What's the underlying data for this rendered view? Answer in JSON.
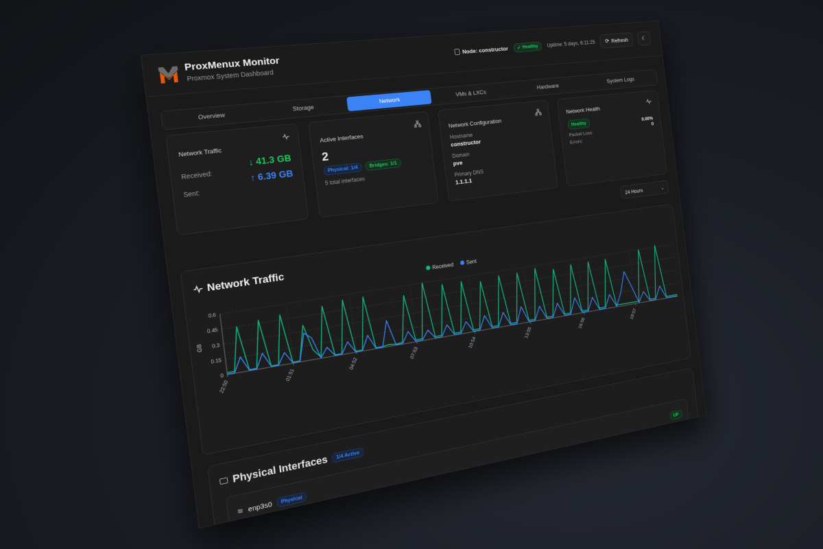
{
  "header": {
    "title": "ProxMenux Monitor",
    "subtitle": "Proxmox System Dashboard",
    "node": "Node: constructor",
    "status": "Healthy",
    "uptime": "Uptime: 5 days, 6:11:25",
    "refresh": "Refresh"
  },
  "tabs": [
    {
      "label": "Overview"
    },
    {
      "label": "Storage"
    },
    {
      "label": "Network",
      "active": true
    },
    {
      "label": "VMs & LXCs"
    },
    {
      "label": "Hardware"
    },
    {
      "label": "System Logs"
    }
  ],
  "traffic_card": {
    "title": "Network Traffic",
    "received_label": "Received:",
    "received": "↓ 41.3 GB",
    "sent_label": "Sent:",
    "sent": "↑ 6.39 GB"
  },
  "interfaces_card": {
    "title": "Active Interfaces",
    "count": "2",
    "physical": "Physical: 1/4",
    "bridges": "Bridges: 1/1",
    "total": "5 total interfaces"
  },
  "config_card": {
    "title": "Network Configuration",
    "hostname_label": "Hostname",
    "hostname": "constructor",
    "domain_label": "Domain",
    "domain": "pve",
    "dns_label": "Primary DNS",
    "dns": "1.1.1.1"
  },
  "health_card": {
    "title": "Network Health",
    "status": "Healthy",
    "packet_loss_value": "0.00%",
    "packet_loss_label": "Packet Loss:",
    "errors_value": "0",
    "errors_label": "Errors:"
  },
  "timerange": {
    "selected": "24 Hours"
  },
  "colors": {
    "accent": "#3b82f6",
    "received": "#10b981",
    "sent": "#3b82f6",
    "healthy": "#22c55e"
  },
  "chart_data": {
    "type": "line",
    "title": "Network Traffic",
    "ylabel": "GB",
    "ylim": [
      0,
      0.6
    ],
    "yticks": [
      "0",
      "0.15",
      "0.3",
      "0.45",
      "0.6"
    ],
    "xticks": [
      "22:50",
      "01:51",
      "04:52",
      "07:53",
      "10:54",
      "13:55",
      "16:56",
      "19:57"
    ],
    "legend": "top-center",
    "grid": true,
    "x": [
      "22:50",
      "23:10",
      "23:30",
      "23:50",
      "00:10",
      "00:30",
      "00:50",
      "01:10",
      "01:30",
      "01:50",
      "02:10",
      "02:30",
      "02:50",
      "03:10",
      "03:30",
      "03:50",
      "04:10",
      "04:30",
      "04:50",
      "05:10",
      "05:30",
      "05:50",
      "06:10",
      "06:30",
      "06:50",
      "07:10",
      "07:30",
      "07:50",
      "08:10",
      "08:30",
      "08:50",
      "09:10",
      "09:30",
      "09:50",
      "10:10",
      "10:30",
      "10:50",
      "11:10",
      "11:30",
      "11:50",
      "12:10",
      "12:30",
      "12:50",
      "13:10",
      "13:30",
      "13:50",
      "14:10",
      "14:30",
      "14:50",
      "15:10",
      "15:30",
      "15:50",
      "16:10",
      "16:30",
      "16:50",
      "17:10",
      "17:30",
      "17:50",
      "18:10",
      "18:30",
      "18:50",
      "19:10",
      "19:30",
      "19:50",
      "20:10",
      "20:30",
      "20:50",
      "21:10",
      "21:30",
      "21:50",
      "22:10",
      "22:30"
    ],
    "series": [
      {
        "name": "Received",
        "color": "#10b981",
        "values": [
          0.02,
          0.02,
          0.45,
          0.01,
          0.01,
          0.48,
          0.01,
          0.01,
          0.5,
          0.01,
          0.01,
          0.36,
          0.1,
          0.01,
          0.52,
          0.01,
          0.01,
          0.55,
          0.01,
          0.01,
          0.55,
          0.01,
          0.01,
          0.02,
          0.01,
          0.02,
          0.5,
          0.02,
          0.02,
          0.6,
          0.02,
          0.02,
          0.55,
          0.02,
          0.02,
          0.55,
          0.02,
          0.02,
          0.52,
          0.02,
          0.02,
          0.55,
          0.02,
          0.02,
          0.55,
          0.02,
          0.02,
          0.57,
          0.02,
          0.02,
          0.53,
          0.02,
          0.02,
          0.55,
          0.02,
          0.02,
          0.55,
          0.02,
          0.02,
          0.55,
          0.02,
          0.02,
          0.02,
          0.02,
          0.02,
          0.6,
          0.02,
          0.02,
          0.62,
          0.02,
          0.02,
          0.02
        ]
      },
      {
        "name": "Sent",
        "color": "#3b82f6",
        "values": [
          0.005,
          0.005,
          0.15,
          0.005,
          0.005,
          0.15,
          0.005,
          0.005,
          0.12,
          0.005,
          0.005,
          0.28,
          0.22,
          0.005,
          0.1,
          0.005,
          0.005,
          0.12,
          0.005,
          0.005,
          0.15,
          0.005,
          0.005,
          0.27,
          0.005,
          0.005,
          0.12,
          0.005,
          0.005,
          0.1,
          0.005,
          0.005,
          0.12,
          0.005,
          0.005,
          0.12,
          0.005,
          0.005,
          0.15,
          0.005,
          0.005,
          0.15,
          0.005,
          0.005,
          0.18,
          0.005,
          0.005,
          0.15,
          0.005,
          0.005,
          0.15,
          0.005,
          0.005,
          0.18,
          0.005,
          0.005,
          0.15,
          0.005,
          0.005,
          0.15,
          0.005,
          0.15,
          0.38,
          0.2,
          0.005,
          0.12,
          0.005,
          0.005,
          0.15,
          0.005,
          0.005,
          0.005
        ]
      }
    ]
  },
  "physical": {
    "title": "Physical Interfaces",
    "badge": "1/4 Active",
    "interfaces": [
      {
        "name": "enp3s0",
        "type": "Physical",
        "status": "UP"
      }
    ]
  }
}
